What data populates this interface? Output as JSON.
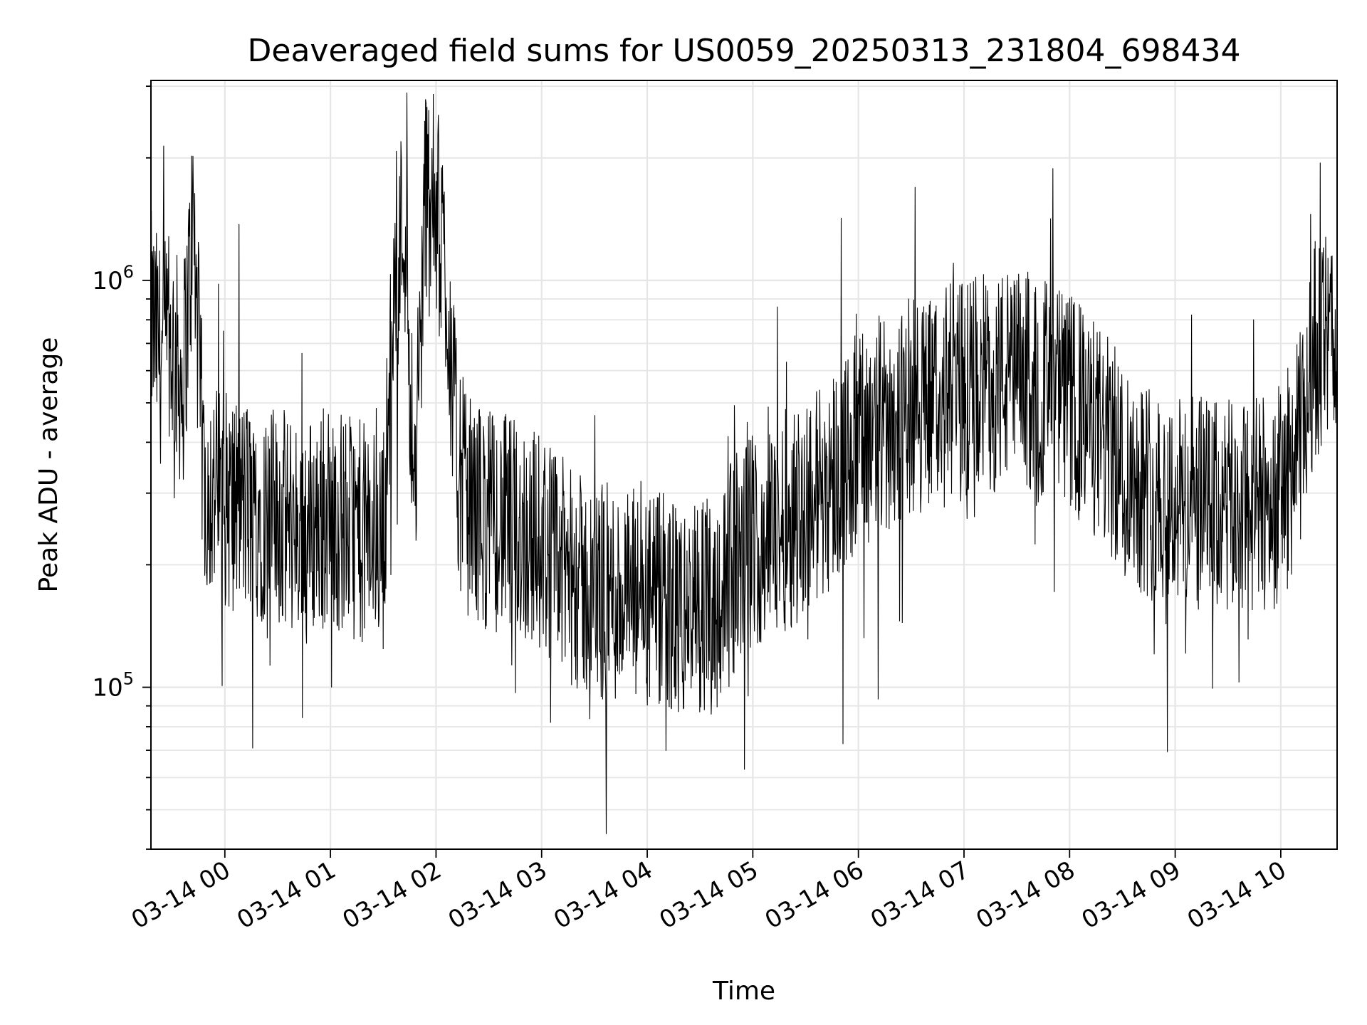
{
  "chart_data": {
    "type": "line",
    "title": "Deaveraged field sums for US0059_20250313_231804_698434",
    "xlabel": "Time",
    "ylabel": "Peak ADU - average",
    "yscale": "log",
    "ylim": [
      40000,
      3100000
    ],
    "xlim": [
      "03-13 23:18",
      "03-14 10:32"
    ],
    "grid": true,
    "line_color": "#000000",
    "x_tick_labels": [
      "03-14 00",
      "03-14 01",
      "03-14 02",
      "03-14 03",
      "03-14 04",
      "03-14 05",
      "03-14 06",
      "03-14 07",
      "03-14 08",
      "03-14 09",
      "03-14 10"
    ],
    "y_tick_labels": [
      {
        "base": "10",
        "exp": "5",
        "value": 100000
      },
      {
        "base": "10",
        "exp": "6",
        "value": 1000000
      }
    ],
    "series": [
      {
        "x": [
          "03-13 23:18",
          "03-13 23:24",
          "03-13 23:30",
          "03-13 23:36",
          "03-13 23:42",
          "03-13 23:48",
          "03-13 23:54",
          "03-14 00:00",
          "03-14 00:10",
          "03-14 00:20",
          "03-14 00:30",
          "03-14 00:40",
          "03-14 00:50",
          "03-14 01:00",
          "03-14 01:10",
          "03-14 01:20",
          "03-14 01:30",
          "03-14 01:36",
          "03-14 01:42",
          "03-14 01:48",
          "03-14 01:54",
          "03-14 02:00",
          "03-14 02:06",
          "03-14 02:12",
          "03-14 02:18",
          "03-14 02:24",
          "03-14 02:30",
          "03-14 02:40",
          "03-14 02:50",
          "03-14 03:00",
          "03-14 03:10",
          "03-14 03:20",
          "03-14 03:30",
          "03-14 03:40",
          "03-14 03:50",
          "03-14 04:00",
          "03-14 04:10",
          "03-14 04:20",
          "03-14 04:30",
          "03-14 04:40",
          "03-14 04:50",
          "03-14 05:00",
          "03-14 05:10",
          "03-14 05:20",
          "03-14 05:30",
          "03-14 05:40",
          "03-14 05:50",
          "03-14 06:00",
          "03-14 06:10",
          "03-14 06:20",
          "03-14 06:30",
          "03-14 06:40",
          "03-14 06:50",
          "03-14 07:00",
          "03-14 07:10",
          "03-14 07:20",
          "03-14 07:30",
          "03-14 07:40",
          "03-14 07:50",
          "03-14 08:00",
          "03-14 08:10",
          "03-14 08:20",
          "03-14 08:30",
          "03-14 08:40",
          "03-14 08:50",
          "03-14 09:00",
          "03-14 09:10",
          "03-14 09:20",
          "03-14 09:30",
          "03-14 09:40",
          "03-14 09:50",
          "03-14 10:00",
          "03-14 10:10",
          "03-14 10:20",
          "03-14 10:32"
        ],
        "y": [
          800000,
          650000,
          700000,
          550000,
          1400000,
          320000,
          300000,
          290000,
          280000,
          270000,
          260000,
          250000,
          250000,
          260000,
          250000,
          240000,
          230000,
          900000,
          1500000,
          280000,
          1700000,
          1500000,
          1000000,
          350000,
          280000,
          270000,
          260000,
          250000,
          240000,
          230000,
          200000,
          180000,
          170000,
          170000,
          165000,
          160000,
          160000,
          150000,
          155000,
          165000,
          200000,
          230000,
          240000,
          260000,
          280000,
          310000,
          350000,
          400000,
          430000,
          460000,
          490000,
          510000,
          520000,
          540000,
          560000,
          570000,
          570000,
          560000,
          540000,
          500000,
          450000,
          400000,
          350000,
          320000,
          300000,
          285000,
          280000,
          275000,
          270000,
          275000,
          280000,
          300000,
          380000,
          700000,
          700000
        ]
      }
    ]
  }
}
